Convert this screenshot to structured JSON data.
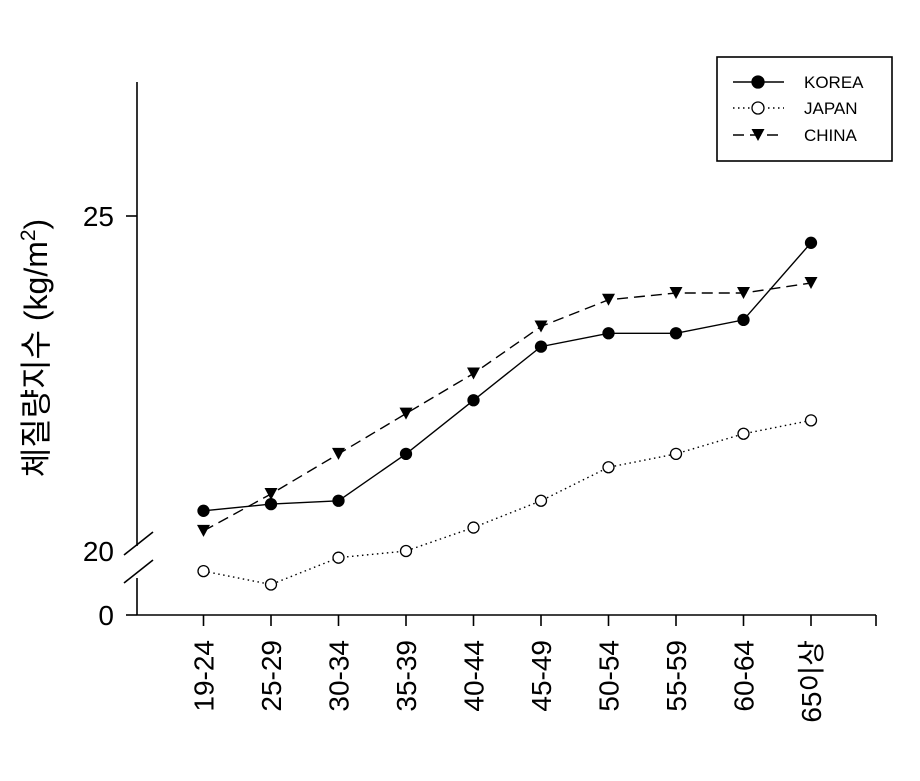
{
  "chart_data": {
    "type": "line",
    "ylabel": "체질량지수 (kg/m²)",
    "ylabel_main": "체질량지수 (kg/m",
    "ylabel_sup": "2",
    "ylabel_close": ")",
    "xlabel": "",
    "categories": [
      "19-24",
      "25-29",
      "30-34",
      "35-39",
      "40-44",
      "45-49",
      "50-54",
      "55-59",
      "60-64",
      "65이상"
    ],
    "y_ticks": [
      "25",
      "20",
      "0"
    ],
    "ylim": [
      20,
      25
    ],
    "axis_break": true,
    "grid": false,
    "legend_position": "top-right",
    "series": [
      {
        "name": "KOREA",
        "marker": "filled-circle",
        "line": "solid",
        "values": [
          20.6,
          20.7,
          20.75,
          21.45,
          22.25,
          23.05,
          23.25,
          23.25,
          23.45,
          24.6
        ]
      },
      {
        "name": "JAPAN",
        "marker": "open-circle",
        "line": "dotted",
        "values": [
          19.7,
          19.5,
          19.9,
          20.0,
          20.35,
          20.75,
          21.25,
          21.45,
          21.75,
          21.95
        ]
      },
      {
        "name": "CHINA",
        "marker": "filled-triangle-down",
        "line": "dashed",
        "values": [
          20.3,
          20.85,
          21.45,
          22.05,
          22.65,
          23.35,
          23.75,
          23.85,
          23.85,
          24.0
        ]
      }
    ]
  }
}
